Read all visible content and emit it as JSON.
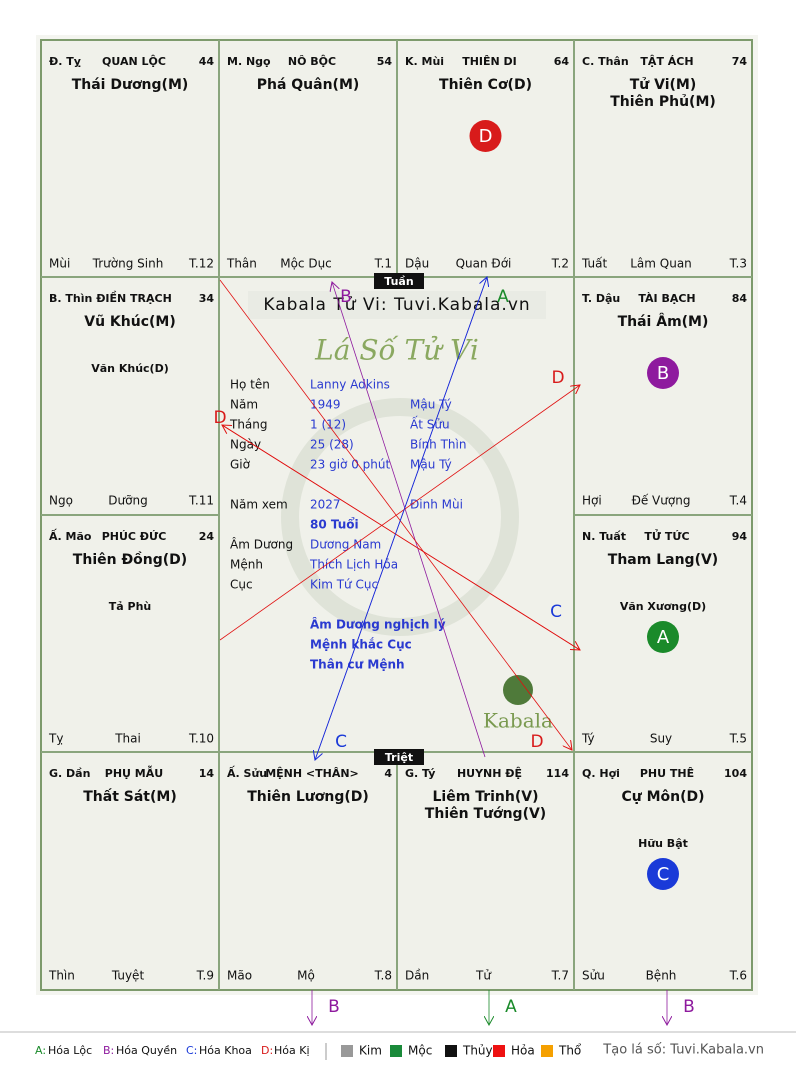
{
  "palaces": [
    {
      "can": "Đ. Tỵ",
      "can_color": "#d81b1b",
      "name": "QUAN LỘC",
      "number": 44,
      "stars": [
        {
          "text": "Thái Dương(M)",
          "color": "#d81b1b"
        }
      ],
      "minor": [],
      "bottom": [
        "Mùi",
        "Trường Sinh",
        "T.12"
      ]
    },
    {
      "can": "M. Ngọ",
      "can_color": "#d81b1b",
      "name": "NÔ BỘC",
      "number": 54,
      "stars": [
        {
          "text": "Phá Quân(M)",
          "color": "#111111"
        }
      ],
      "minor": [],
      "bottom": [
        "Thân",
        "Mộc Dục",
        "T.1"
      ]
    },
    {
      "can": "K. Mùi",
      "can_color": "#f0a000",
      "name": "THIÊN DI",
      "number": 64,
      "stars": [
        {
          "text": "Thiên Cơ(D)",
          "color": "#1a8a2a"
        }
      ],
      "minor": [],
      "badge": "D",
      "bottom": [
        "Dậu",
        "Quan Đới",
        "T.2"
      ]
    },
    {
      "can": "C. Thân",
      "can_color": "#999999",
      "name": "TẬT ÁCH",
      "number": 74,
      "stars": [
        {
          "text": "Tử Vi(M)",
          "color": "#f0a000"
        },
        {
          "text": "Thiên Phủ(M)",
          "color": "#f0a000"
        }
      ],
      "minor": [],
      "bottom": [
        "Tuất",
        "Lâm Quan",
        "T.3"
      ]
    },
    {
      "can": "B. Thìn",
      "can_color": "#f0a000",
      "name": "ĐIỀN TRẠCH",
      "number": 34,
      "stars": [
        {
          "text": "Vũ Khúc(M)",
          "color": "#999999"
        }
      ],
      "minor": [
        {
          "text": "Văn Khúc(D)",
          "color": "#111111"
        }
      ],
      "bottom": [
        "Ngọ",
        "Dưỡng",
        "T.11"
      ]
    },
    {
      "can": "T. Dậu",
      "can_color": "#999999",
      "name": "TÀI BẠCH",
      "number": 84,
      "stars": [
        {
          "text": "Thái Âm(M)",
          "color": "#111111"
        }
      ],
      "minor": [],
      "badge": "B",
      "bottom": [
        "Hợi",
        "Đế Vượng",
        "T.4"
      ]
    },
    {
      "can": "Ấ. Mão",
      "can_color": "#1a8a2a",
      "name": "PHÚC ĐỨC",
      "number": 24,
      "stars": [
        {
          "text": "Thiên Đồng(D)",
          "color": "#111111"
        }
      ],
      "minor": [
        {
          "text": "Tả Phù",
          "color": "#f0a000"
        }
      ],
      "bottom": [
        "Tỵ",
        "Thai",
        "T.10"
      ]
    },
    {
      "can": "N. Tuất",
      "can_color": "#f0a000",
      "name": "TỬ TỨC",
      "number": 94,
      "stars": [
        {
          "text": "Tham Lang(V)",
          "color": "#111111"
        }
      ],
      "minor": [
        {
          "text": "Văn Xương(D)",
          "color": "#999999"
        }
      ],
      "badge": "A",
      "bottom": [
        "Tý",
        "Suy",
        "T.5"
      ]
    },
    {
      "can": "G. Dần",
      "can_color": "#1a8a2a",
      "name": "PHỤ MẪU",
      "number": 14,
      "stars": [
        {
          "text": "Thất Sát(M)",
          "color": "#999999"
        }
      ],
      "minor": [],
      "bottom": [
        "Thìn",
        "Tuyệt",
        "T.9"
      ]
    },
    {
      "can": "Ấ. Sửu",
      "can_color": "#f0a000",
      "name": "MỆNH <THÂN>",
      "number": 4,
      "stars": [
        {
          "text": "Thiên Lương(D)",
          "color": "#1a8a2a"
        }
      ],
      "minor": [],
      "bottom": [
        "Mão",
        "Mộ",
        "T.8"
      ]
    },
    {
      "can": "G. Tý",
      "can_color": "#d81b1b",
      "name": "HUYNH ĐỆ",
      "number": 114,
      "stars": [
        {
          "text": "Liêm Trinh(V)",
          "color": "#d81b1b"
        },
        {
          "text": "Thiên Tướng(V)",
          "color": "#111111"
        }
      ],
      "minor": [],
      "bottom": [
        "Dần",
        "Tử",
        "T.7"
      ]
    },
    {
      "can": "Q. Hợi",
      "can_color": "#111111",
      "name": "PHU THÊ",
      "number": 104,
      "stars": [
        {
          "text": "Cự Môn(D)",
          "color": "#111111"
        }
      ],
      "minor": [
        {
          "text": "Hữu Bật",
          "color": "#111111"
        }
      ],
      "badge": "C",
      "bottom": [
        "Sửu",
        "Bệnh",
        "T.6"
      ]
    }
  ],
  "center": {
    "tuan": "Tuần",
    "triet": "Triệt",
    "watermark": "Kabala Tử Vi: Tuvi.Kabala.vn",
    "script_title": "Lá Số Tử Vi",
    "logo": "Kabala",
    "info": [
      {
        "label": "Họ tên",
        "value": "Lanny Adkins"
      },
      {
        "label": "Năm",
        "value": "1949",
        "extra": "Mậu Tý"
      },
      {
        "label": "Tháng",
        "value": "1  (12)",
        "extra": "Ất Sửu"
      },
      {
        "label": "Ngày",
        "value": "25  (28)",
        "extra": "Bính Thìn"
      },
      {
        "label": "Giờ",
        "value": "23 giờ 0 phút",
        "extra": "Mậu Tý"
      },
      {
        "label": "Năm xem",
        "value": "2027",
        "extra": "Đinh Mùi"
      },
      {
        "value": "80 Tuổi"
      },
      {
        "label": "Âm Dương",
        "value": "Dương Nam"
      },
      {
        "label": "Mệnh",
        "value": "Thích Lịch Hỏa"
      },
      {
        "label": "Cục",
        "value": "Kim Tứ Cục"
      }
    ],
    "notes": [
      "Âm Dương nghịch lý",
      "Mệnh khắc Cục",
      "Thân cư Mệnh"
    ]
  },
  "arrows": [
    {
      "label": "B"
    },
    {
      "label": "A"
    },
    {
      "label": "D"
    },
    {
      "label": "D"
    },
    {
      "label": "C"
    },
    {
      "label": "D"
    },
    {
      "label": "C"
    },
    {
      "label": "B"
    },
    {
      "label": "A"
    },
    {
      "label": "B"
    }
  ],
  "legend": {
    "transformations": [
      {
        "key": "A:",
        "label": "Hóa Lộc",
        "color": "#1a8a2a"
      },
      {
        "key": "B:",
        "label": "Hóa Quyền",
        "color": "#8e1a9e"
      },
      {
        "key": "C:",
        "label": "Hóa Khoa",
        "color": "#1a3ad8"
      },
      {
        "key": "D:",
        "label": "Hóa Kị",
        "color": "#d81b1b"
      }
    ],
    "elements": [
      {
        "label": "Kim",
        "color": "#999999"
      },
      {
        "label": "Mộc",
        "color": "#1a8a3a"
      },
      {
        "label": "Thủy",
        "color": "#111111"
      },
      {
        "label": "Hỏa",
        "color": "#ee1111"
      },
      {
        "label": "Thổ",
        "color": "#f5a000"
      }
    ],
    "credit": "Tạo lá số: Tuvi.Kabala.vn"
  }
}
